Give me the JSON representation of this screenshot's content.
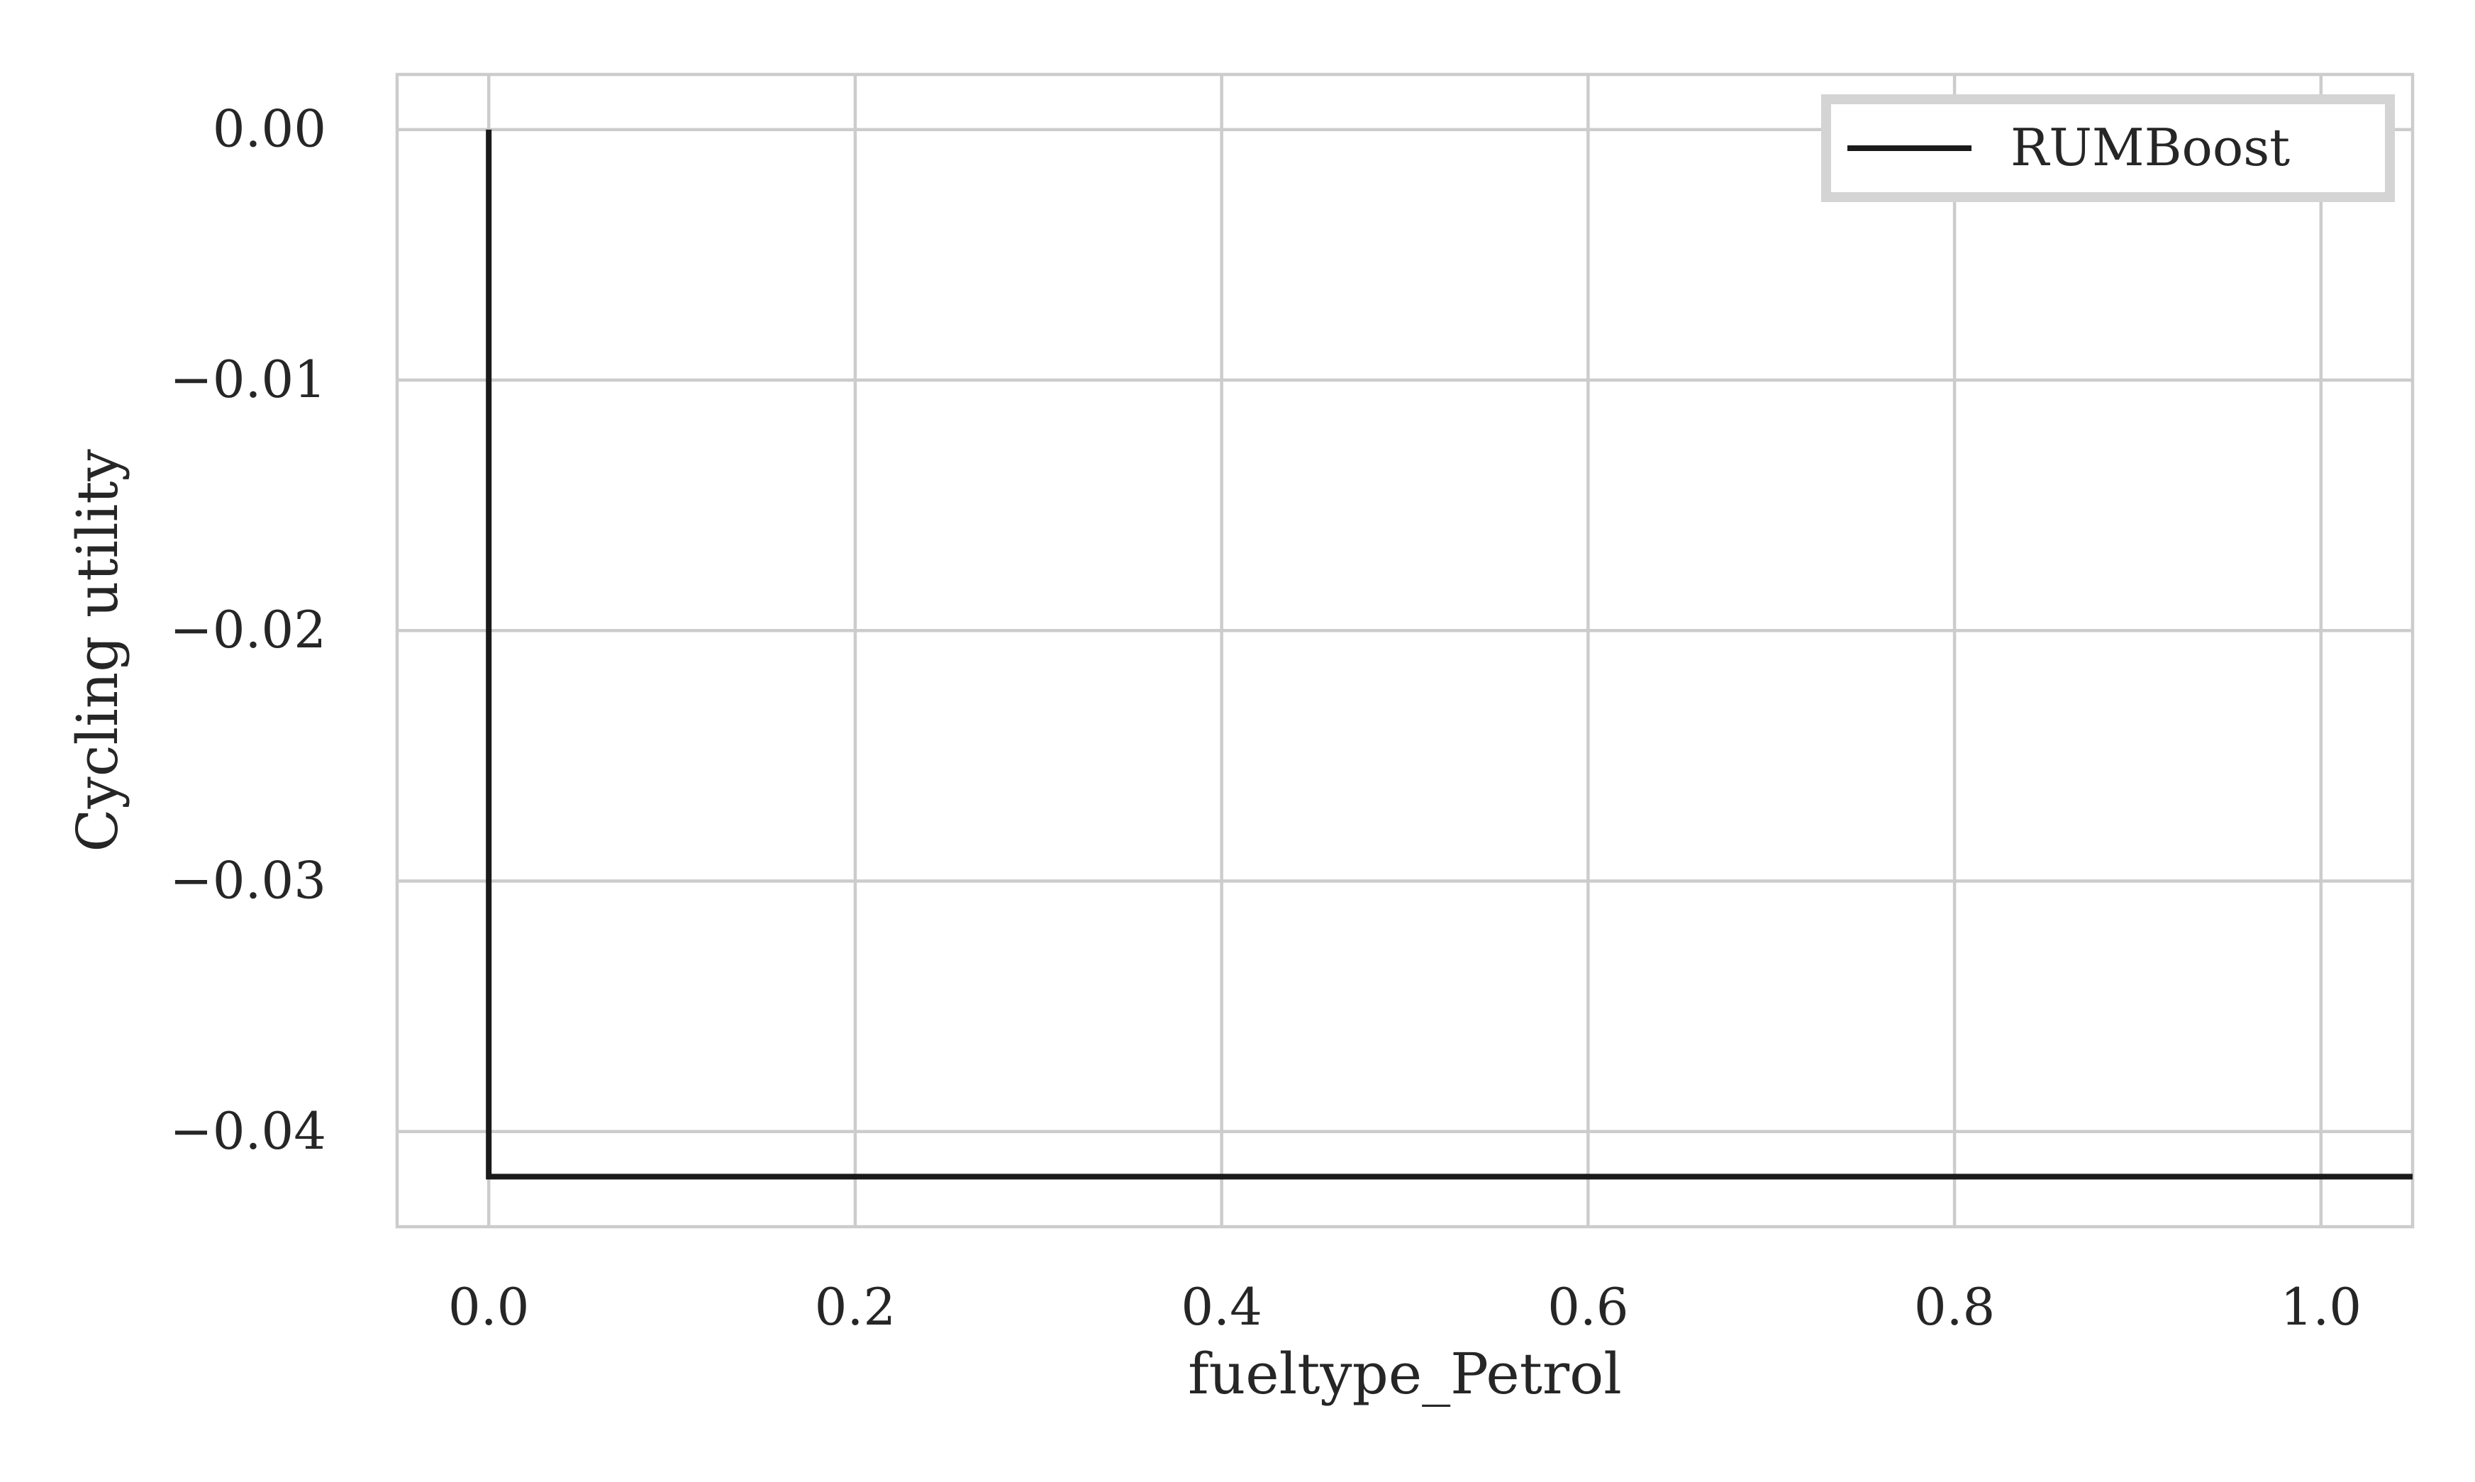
{
  "chart_data": {
    "type": "line",
    "xlabel": "fueltype_Petrol",
    "ylabel": "Cycling utility",
    "xlim": [
      -0.05,
      1.05
    ],
    "ylim": [
      -0.0438,
      0.0022
    ],
    "x_ticks": [
      0.0,
      0.2,
      0.4,
      0.6,
      0.8,
      1.0
    ],
    "x_tick_labels": [
      "0.0",
      "0.2",
      "0.4",
      "0.6",
      "0.8",
      "1.0"
    ],
    "y_ticks": [
      0.0,
      -0.01,
      -0.02,
      -0.03,
      -0.04
    ],
    "y_tick_labels": [
      "0.00",
      "−0.01",
      "−0.02",
      "−0.03",
      "−0.04"
    ],
    "grid": true,
    "legend_position": "top-right",
    "series": [
      {
        "name": "RUMBoost",
        "color": "#1a1a1a",
        "x": [
          0.0,
          0.0,
          1.05
        ],
        "y": [
          0.0,
          -0.0418,
          -0.0418
        ]
      }
    ]
  }
}
